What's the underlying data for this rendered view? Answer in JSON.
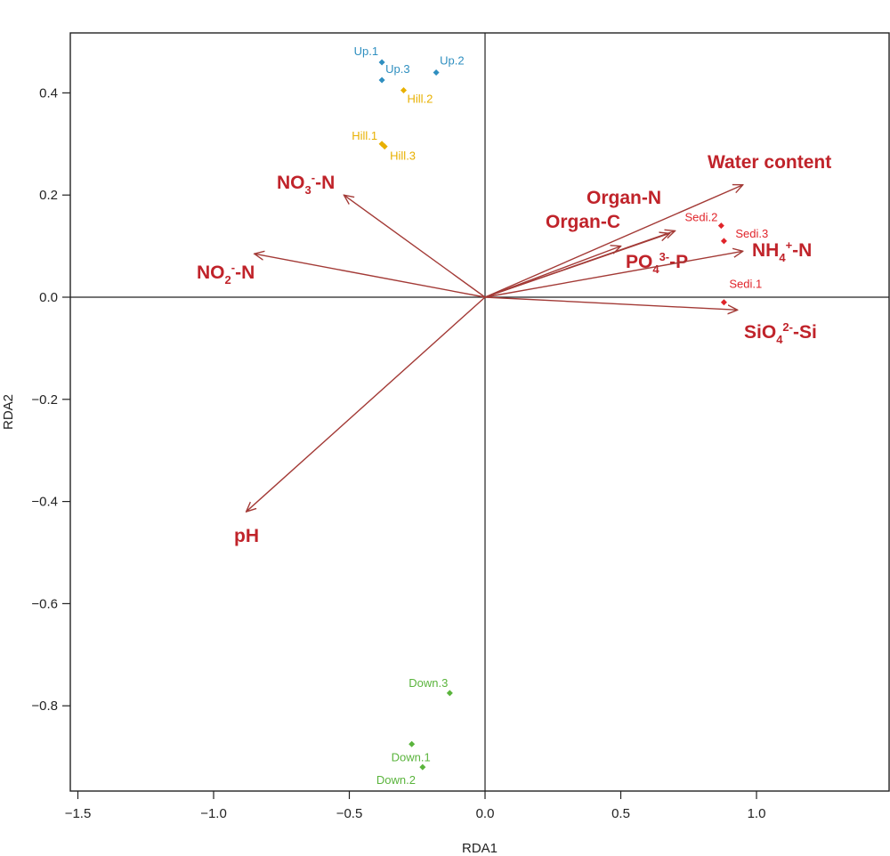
{
  "chart_data": {
    "type": "scatter",
    "title": "",
    "xlabel": "RDA1",
    "ylabel": "RDA2",
    "xlim": [
      -1.5,
      1.5
    ],
    "ylim": [
      -0.97,
      0.52
    ],
    "xticks": [
      -1.5,
      -1.0,
      -0.5,
      0.0,
      0.5,
      1.0
    ],
    "yticks": [
      -0.8,
      -0.6,
      -0.4,
      -0.2,
      0.0,
      0.2,
      0.4
    ],
    "xtick_labels": [
      "−1.5",
      "−1.0",
      "−0.5",
      "0.0",
      "0.5",
      "1.0"
    ],
    "ytick_labels": [
      "−0.8",
      "−0.6",
      "−0.4",
      "−0.2",
      "0.0",
      "0.2",
      "0.4"
    ],
    "grid": false,
    "colors": {
      "up": "#2f8fc0",
      "hill": "#e8b000",
      "sedi": "#e0242a",
      "down": "#5ab43c",
      "vector": "#a33a36",
      "vector_label": "#c0232a"
    },
    "samples": [
      {
        "label": "Up.1",
        "group": "up",
        "x": -0.38,
        "y": 0.46
      },
      {
        "label": "Up.3",
        "group": "up",
        "x": -0.38,
        "y": 0.425
      },
      {
        "label": "Up.2",
        "group": "up",
        "x": -0.18,
        "y": 0.44
      },
      {
        "label": "Hill.2",
        "group": "hill",
        "x": -0.3,
        "y": 0.405
      },
      {
        "label": "Hill.1",
        "group": "hill",
        "x": -0.38,
        "y": 0.3
      },
      {
        "label": "Hill.3",
        "group": "hill",
        "x": -0.37,
        "y": 0.295
      },
      {
        "label": "Sedi.2",
        "group": "sedi",
        "x": 0.87,
        "y": 0.14
      },
      {
        "label": "Sedi.3",
        "group": "sedi",
        "x": 0.88,
        "y": 0.11
      },
      {
        "label": "Sedi.1",
        "group": "sedi",
        "x": 0.88,
        "y": -0.01
      },
      {
        "label": "Down.3",
        "group": "down",
        "x": -0.13,
        "y": -0.775
      },
      {
        "label": "Down.1",
        "group": "down",
        "x": -0.27,
        "y": -0.875
      },
      {
        "label": "Down.2",
        "group": "down",
        "x": -0.23,
        "y": -0.92
      }
    ],
    "vectors": [
      {
        "main": "Water content",
        "sub": "",
        "sup": "",
        "tail": "",
        "x": 0.95,
        "y": 0.22
      },
      {
        "main": "Organ-N",
        "sub": "",
        "sup": "",
        "tail": "",
        "x": 0.7,
        "y": 0.13
      },
      {
        "main": "Organ-C",
        "sub": "",
        "sup": "",
        "tail": "",
        "x": 0.68,
        "y": 0.125
      },
      {
        "main": "PO",
        "sub": "4",
        "sup": "3-",
        "tail": "-P",
        "x": 0.5,
        "y": 0.1
      },
      {
        "main": "NH",
        "sub": "4",
        "sup": "+",
        "tail": "-N",
        "x": 0.95,
        "y": 0.09
      },
      {
        "main": "SiO",
        "sub": "4",
        "sup": "2-",
        "tail": "-Si",
        "x": 0.93,
        "y": -0.025
      },
      {
        "main": "NO",
        "sub": "3",
        "sup": "-",
        "tail": "-N",
        "x": -0.52,
        "y": 0.2
      },
      {
        "main": "NO",
        "sub": "2",
        "sup": "-",
        "tail": "-N",
        "x": -0.85,
        "y": 0.085
      },
      {
        "main": "pH",
        "sub": "",
        "sup": "",
        "tail": "",
        "x": -0.88,
        "y": -0.42
      }
    ]
  }
}
